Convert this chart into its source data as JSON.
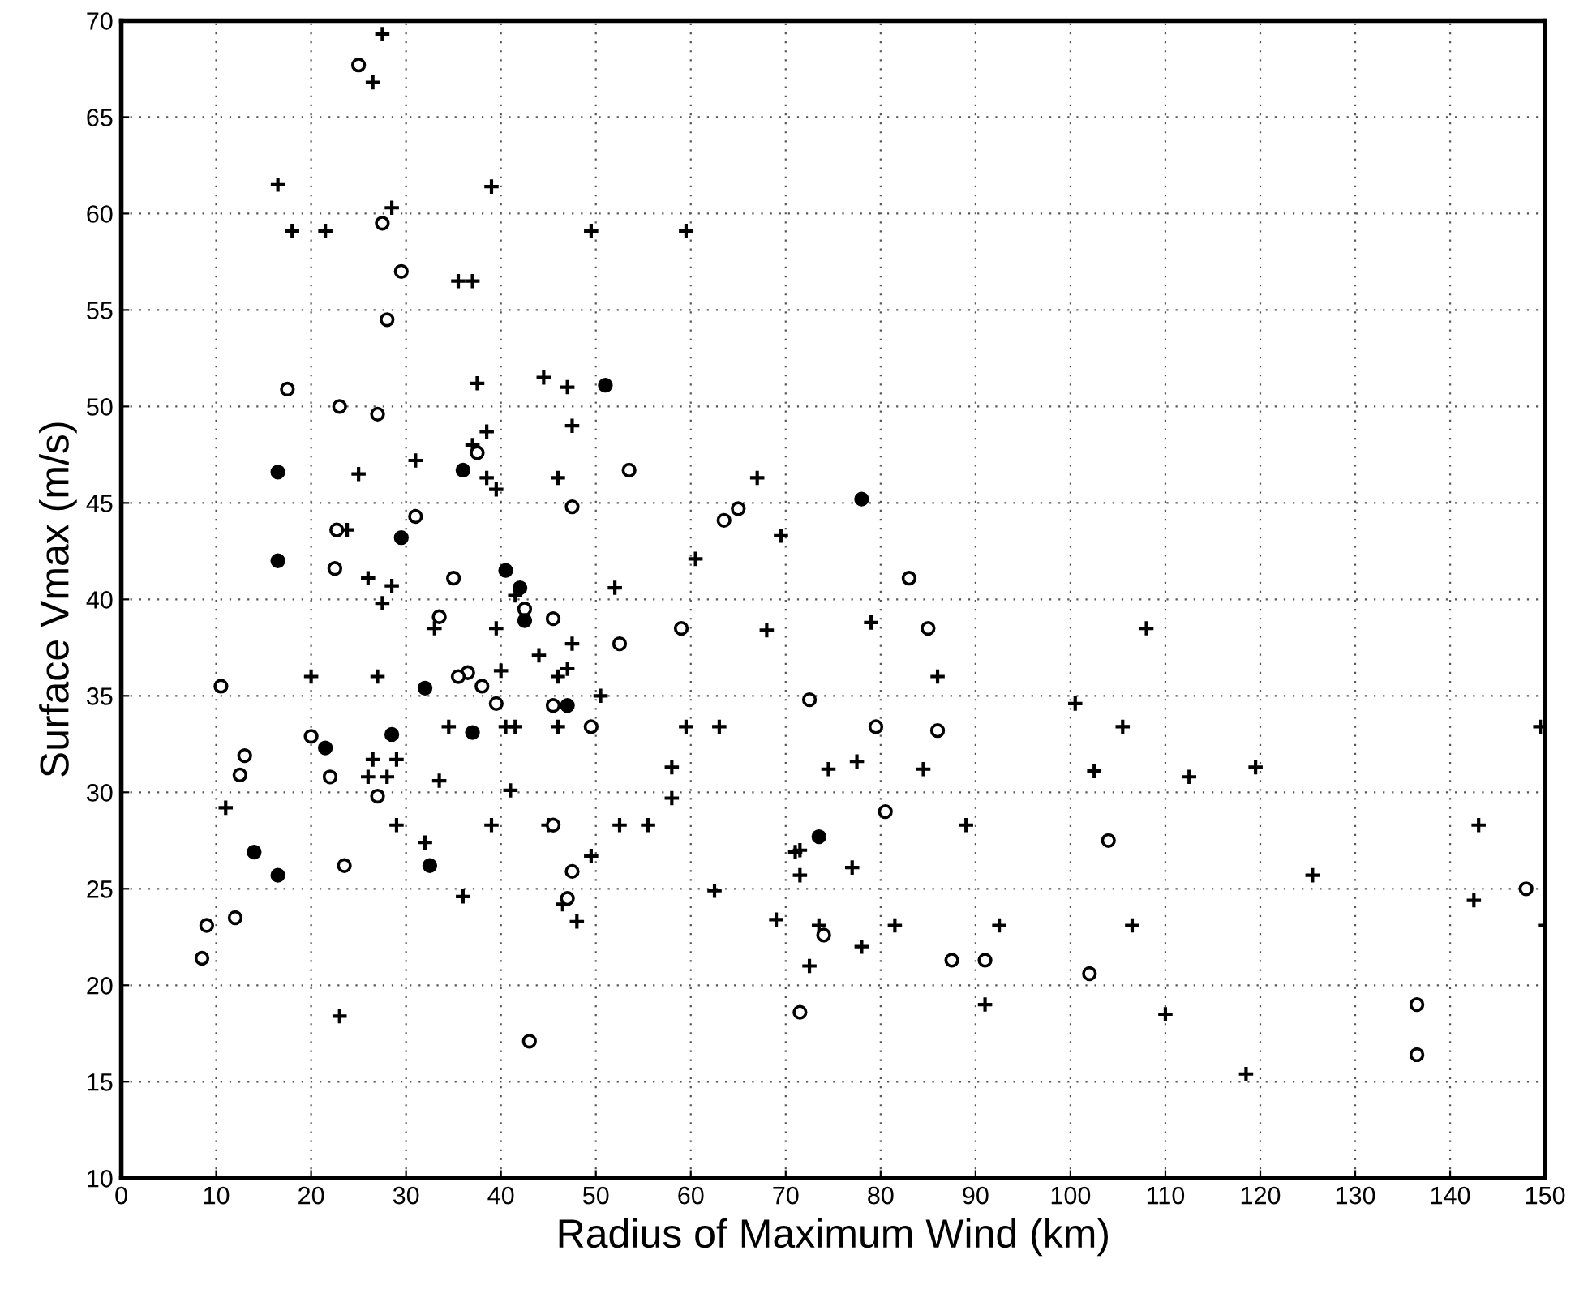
{
  "chart_data": {
    "type": "scatter",
    "xlabel": "Radius of Maximum Wind (km)",
    "ylabel": "Surface Vmax (m/s)",
    "xlim": [
      0,
      150
    ],
    "xticks": [
      0,
      10,
      20,
      30,
      40,
      50,
      60,
      70,
      80,
      90,
      100,
      110,
      120,
      130,
      140,
      150
    ],
    "ylim": [
      10,
      70
    ],
    "yticks": [
      10,
      15,
      20,
      25,
      30,
      35,
      40,
      45,
      50,
      55,
      60,
      65,
      70
    ],
    "grid": true,
    "series": [
      {
        "color": "#000000",
        "marker": "cross",
        "x": [
          27.5,
          26.5,
          16.5,
          28.5,
          39,
          18,
          21.5,
          49.5,
          59.5,
          35.5,
          37,
          37.5,
          44.5,
          47,
          47.5,
          38.5,
          31,
          37,
          25,
          38.5,
          39.5,
          46,
          67,
          69.5,
          60.5,
          23.8,
          26,
          28.5,
          27.5,
          33,
          39.5,
          41.5,
          52,
          68,
          79,
          108,
          44,
          47.5,
          47,
          20,
          27,
          40,
          46,
          50.5,
          86,
          34.5,
          40.5,
          41.5,
          46,
          59.5,
          63,
          100.5,
          105.5,
          149.5,
          26.5,
          29,
          26,
          28,
          33.5,
          41,
          58,
          74.5,
          77.5,
          84.5,
          102.5,
          112.5,
          119.5,
          11,
          29,
          39,
          45,
          52.5,
          55.5,
          58,
          89,
          143,
          32,
          49.5,
          71,
          71.5,
          71.5,
          77,
          36,
          46.5,
          48,
          62.5,
          125.5,
          142.5,
          69,
          73.5,
          81.5,
          92.5,
          106.5,
          150,
          78,
          72.5,
          23,
          91,
          110,
          118.5
        ],
        "values": [
          69.3,
          66.8,
          61.5,
          60.3,
          61.4,
          59.1,
          59.1,
          59.1,
          59.1,
          56.5,
          56.5,
          51.2,
          51.5,
          51,
          49,
          48.7,
          47.2,
          48,
          46.5,
          46.3,
          45.7,
          46.3,
          46.3,
          43.3,
          42.1,
          43.6,
          41.1,
          40.7,
          39.8,
          38.5,
          38.5,
          40.2,
          40.6,
          38.4,
          38.8,
          38.5,
          37.1,
          37.7,
          36.4,
          36,
          36,
          36.3,
          36,
          35,
          36,
          33.4,
          33.4,
          33.4,
          33.4,
          33.4,
          33.4,
          34.6,
          33.4,
          33.4,
          31.7,
          31.7,
          30.8,
          30.8,
          30.6,
          30.1,
          31.3,
          31.2,
          31.6,
          31.2,
          31.1,
          30.8,
          31.3,
          29.2,
          28.3,
          28.3,
          28.3,
          28.3,
          28.3,
          29.7,
          28.3,
          28.3,
          27.4,
          26.7,
          26.9,
          27,
          25.7,
          26.1,
          24.6,
          24.2,
          23.3,
          24.9,
          25.7,
          24.4,
          23.4,
          23.1,
          23.1,
          23.1,
          23.1,
          23.1,
          22,
          21,
          18.4,
          19,
          18.5,
          15.4
        ]
      },
      {
        "color": "#ffffff",
        "marker": "circle",
        "x": [
          25,
          27.5,
          29.5,
          28,
          17.5,
          23,
          27,
          37.5,
          53.5,
          31,
          47.5,
          63.5,
          65,
          22.7,
          22.5,
          35,
          33.5,
          42.5,
          45.5,
          52.5,
          59,
          83,
          85,
          10.5,
          36.5,
          35.5,
          38,
          39.5,
          45.5,
          49.5,
          72.5,
          79.5,
          86,
          20,
          13,
          12.5,
          22,
          27,
          45.5,
          80.5,
          104,
          47.5,
          23.5,
          47,
          74,
          87.5,
          91,
          102,
          12,
          9,
          8.5,
          148,
          71.5,
          136.5,
          43,
          136.5
        ],
        "values": [
          67.7,
          59.5,
          57,
          54.5,
          50.9,
          50,
          49.6,
          47.6,
          46.7,
          44.3,
          44.8,
          44.1,
          44.7,
          43.6,
          41.6,
          41.1,
          39.1,
          39.5,
          39,
          37.7,
          38.5,
          41.1,
          38.5,
          35.5,
          36.2,
          36,
          35.5,
          34.6,
          34.5,
          33.4,
          34.8,
          33.4,
          33.2,
          32.9,
          31.9,
          30.9,
          30.8,
          29.8,
          28.3,
          29,
          27.5,
          25.9,
          26.2,
          24.5,
          22.6,
          21.3,
          21.3,
          20.6,
          23.5,
          23.1,
          21.4,
          25,
          18.6,
          19,
          17.1,
          16.4
        ]
      },
      {
        "color": "#000000",
        "marker": "circle",
        "x": [
          16.5,
          36,
          51,
          78,
          16.5,
          40.5,
          42,
          42.5,
          29.5,
          32,
          37,
          21.5,
          28.5,
          47,
          14,
          16.5,
          32.5,
          73.5
        ],
        "values": [
          46.6,
          46.7,
          51.1,
          45.2,
          42,
          41.5,
          40.6,
          38.9,
          43.2,
          35.4,
          33.1,
          32.3,
          33,
          34.5,
          26.9,
          25.7,
          26.2,
          27.7
        ]
      }
    ]
  }
}
